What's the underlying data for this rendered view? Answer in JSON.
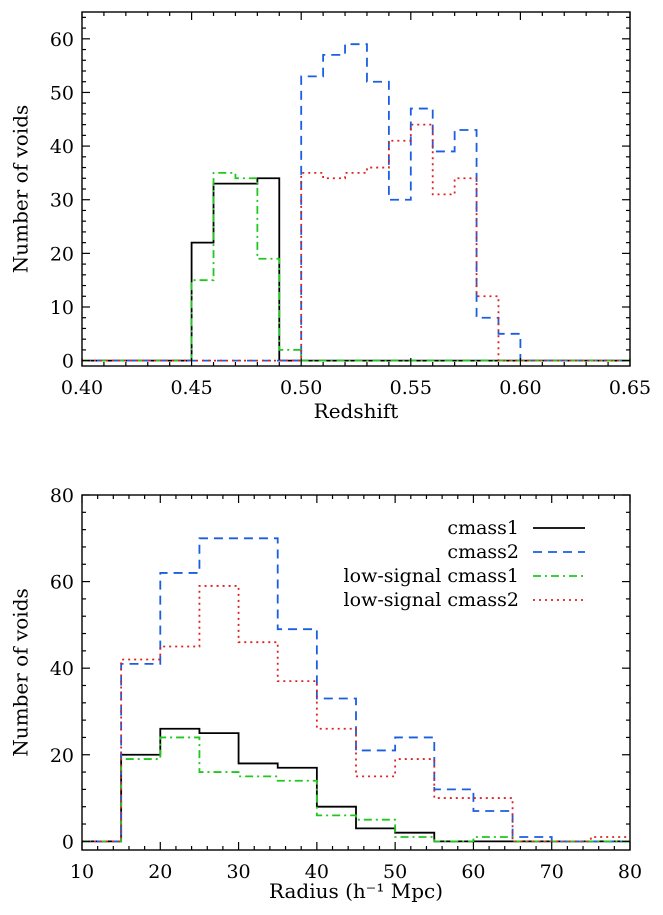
{
  "chart_data": [
    {
      "type": "histogram",
      "xlabel": "Redshift",
      "ylabel": "Number of voids",
      "xlim": [
        0.4,
        0.65
      ],
      "ylim": [
        -1,
        65
      ],
      "xticks": [
        0.4,
        0.45,
        0.5,
        0.55,
        0.6,
        0.65
      ],
      "xtick_labels": [
        "0.40",
        "0.45",
        "0.50",
        "0.55",
        "0.60",
        "0.65"
      ],
      "yticks": [
        0,
        10,
        20,
        30,
        40,
        50,
        60
      ],
      "ytick_labels": [
        "0",
        "10",
        "20",
        "30",
        "40",
        "50",
        "60"
      ],
      "bin_edges": [
        0.4,
        0.45,
        0.46,
        0.47,
        0.48,
        0.49,
        0.5,
        0.51,
        0.52,
        0.53,
        0.54,
        0.55,
        0.56,
        0.57,
        0.58,
        0.59,
        0.6,
        0.65
      ],
      "series": [
        {
          "name": "cmass1",
          "color": "#000000",
          "dash": "",
          "values": [
            0,
            22,
            33,
            33,
            34,
            0,
            0,
            0,
            0,
            0,
            0,
            0,
            0,
            0,
            0,
            0,
            0
          ]
        },
        {
          "name": "cmass2",
          "color": "#1a5fe0",
          "dash": "9,6",
          "values": [
            0,
            0,
            0,
            0,
            0,
            0,
            53,
            57,
            59,
            52,
            30,
            47,
            39,
            43,
            8,
            5,
            0
          ]
        },
        {
          "name": "low-signal cmass1",
          "color": "#1ec81e",
          "dash": "8,4,2,4",
          "values": [
            0,
            15,
            35,
            34,
            19,
            2,
            0,
            0,
            0,
            0,
            0,
            0,
            0,
            0,
            0,
            0,
            0
          ]
        },
        {
          "name": "low-signal cmass2",
          "color": "#e02020",
          "dash": "2,4",
          "values": [
            0,
            0,
            0,
            0,
            0,
            0,
            35,
            34,
            35,
            36,
            41,
            44,
            31,
            34,
            12,
            0,
            0
          ]
        }
      ],
      "legend": false
    },
    {
      "type": "histogram",
      "xlabel": "Radius (h⁻¹ Mpc)",
      "ylabel": "Number of voids",
      "xlim": [
        10,
        80
      ],
      "ylim": [
        -2,
        80
      ],
      "xticks": [
        10,
        20,
        30,
        40,
        50,
        60,
        70,
        80
      ],
      "xtick_labels": [
        "10",
        "20",
        "30",
        "40",
        "50",
        "60",
        "70",
        "80"
      ],
      "yticks": [
        0,
        20,
        40,
        60,
        80
      ],
      "ytick_labels": [
        "0",
        "20",
        "40",
        "60",
        "80"
      ],
      "bin_edges": [
        10,
        15,
        20,
        25,
        30,
        35,
        40,
        45,
        50,
        55,
        60,
        65,
        70,
        75,
        80
      ],
      "series": [
        {
          "name": "cmass1",
          "color": "#000000",
          "dash": "",
          "values": [
            0,
            20,
            26,
            25,
            18,
            17,
            8,
            3,
            2,
            0,
            0,
            0,
            0,
            0
          ]
        },
        {
          "name": "cmass2",
          "color": "#1a5fe0",
          "dash": "9,6",
          "values": [
            0,
            41,
            62,
            70,
            70,
            49,
            33,
            21,
            24,
            12,
            7,
            1,
            0,
            0
          ]
        },
        {
          "name": "low-signal cmass1",
          "color": "#1ec81e",
          "dash": "8,4,2,4",
          "values": [
            0,
            19,
            24,
            16,
            15,
            14,
            6,
            5,
            1,
            0,
            1,
            0,
            0,
            0
          ]
        },
        {
          "name": "low-signal cmass2",
          "color": "#e02020",
          "dash": "2,4",
          "values": [
            0,
            42,
            45,
            59,
            46,
            37,
            26,
            15,
            19,
            10,
            10,
            0,
            0,
            1
          ]
        }
      ],
      "legend": true,
      "legend_position": "top-right"
    }
  ]
}
